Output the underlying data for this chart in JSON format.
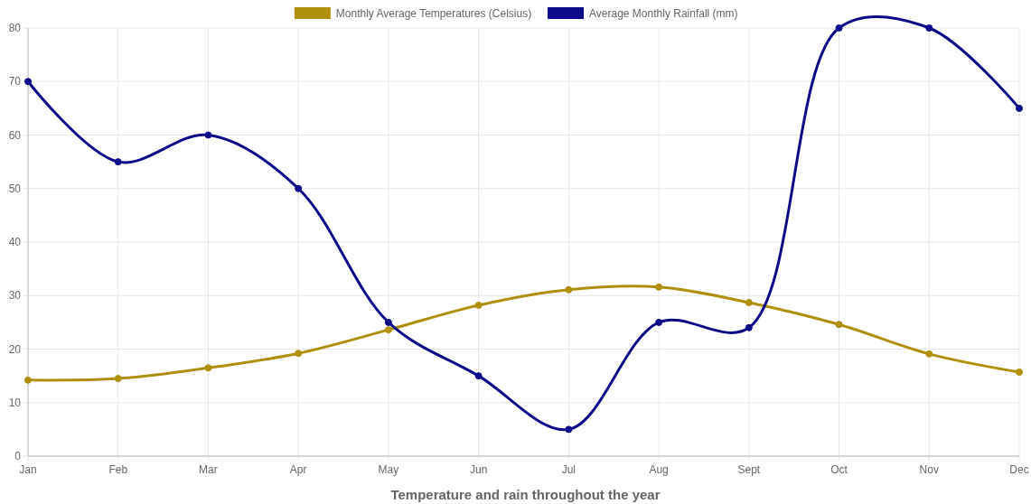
{
  "chart_data": {
    "type": "line",
    "title": "Temperature and rain throughout the year",
    "categories": [
      "Jan",
      "Feb",
      "Mar",
      "Apr",
      "May",
      "Jun",
      "Jul",
      "Aug",
      "Sept",
      "Oct",
      "Nov",
      "Dec"
    ],
    "series": [
      {
        "name": "Monthly Average Temperatures (Celsius)",
        "color": "#af8f0b",
        "values": [
          14.2,
          14.5,
          16.5,
          19.2,
          23.6,
          28.2,
          31.1,
          31.6,
          28.7,
          24.6,
          19.1,
          15.7
        ]
      },
      {
        "name": "Average Monthly Rainfall (mm)",
        "color": "#0a0a8a",
        "values": [
          70,
          55,
          60,
          50,
          25,
          15,
          5,
          25,
          24,
          80,
          80,
          65
        ]
      }
    ],
    "ylim": [
      0,
      80
    ],
    "yticks": [
      0,
      10,
      20,
      30,
      40,
      50,
      60,
      70,
      80
    ],
    "grid": true,
    "legend": "top",
    "marker": "circle",
    "line_style": "solid"
  }
}
